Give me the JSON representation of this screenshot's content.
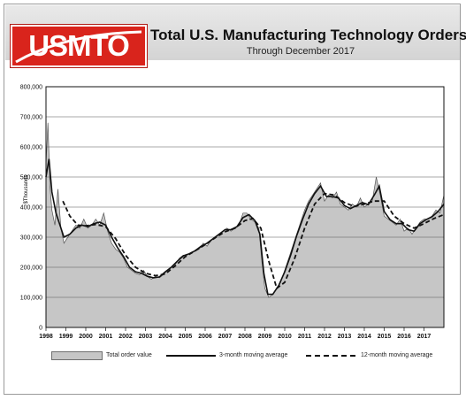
{
  "header": {
    "logo_text": "USMTO",
    "title": "Total U.S. Manufacturing Technology Orders",
    "subtitle": "Through December 2017"
  },
  "colors": {
    "logo_red": "#d9241c",
    "area_fill": "#c6c6c6",
    "line": "#111111"
  },
  "chart_data": {
    "type": "area",
    "ylabel": "$Thousands",
    "ylim": [
      0,
      800000
    ],
    "yticks": [
      "0",
      "100,000",
      "200,000",
      "300,000",
      "400,000",
      "500,000",
      "600,000",
      "700,000",
      "800,000"
    ],
    "xlim": [
      1998,
      2018
    ],
    "xticks": [
      "1998",
      "1999",
      "2000",
      "2001",
      "2002",
      "2003",
      "2004",
      "2005",
      "2006",
      "2007",
      "2008",
      "2009",
      "2010",
      "2011",
      "2012",
      "2013",
      "2014",
      "2015",
      "2016",
      "2017"
    ],
    "grid": true,
    "legend": "bottom",
    "series": [
      {
        "name": "Total order value",
        "style": "area",
        "points": [
          [
            1998.0,
            540000
          ],
          [
            1998.1,
            680000
          ],
          [
            1998.2,
            470000
          ],
          [
            1998.3,
            390000
          ],
          [
            1998.45,
            340000
          ],
          [
            1998.6,
            460000
          ],
          [
            1998.75,
            330000
          ],
          [
            1998.9,
            280000
          ],
          [
            1999.1,
            300000
          ],
          [
            1999.3,
            320000
          ],
          [
            1999.5,
            340000
          ],
          [
            1999.7,
            330000
          ],
          [
            1999.9,
            360000
          ],
          [
            2000.1,
            330000
          ],
          [
            2000.3,
            340000
          ],
          [
            2000.5,
            360000
          ],
          [
            2000.7,
            340000
          ],
          [
            2000.9,
            380000
          ],
          [
            2001.1,
            320000
          ],
          [
            2001.3,
            280000
          ],
          [
            2001.5,
            260000
          ],
          [
            2001.7,
            250000
          ],
          [
            2001.9,
            230000
          ],
          [
            2002.1,
            200000
          ],
          [
            2002.3,
            190000
          ],
          [
            2002.5,
            180000
          ],
          [
            2002.7,
            175000
          ],
          [
            2002.9,
            190000
          ],
          [
            2003.1,
            170000
          ],
          [
            2003.3,
            160000
          ],
          [
            2003.5,
            170000
          ],
          [
            2003.7,
            165000
          ],
          [
            2003.9,
            175000
          ],
          [
            2004.1,
            190000
          ],
          [
            2004.3,
            200000
          ],
          [
            2004.5,
            210000
          ],
          [
            2004.7,
            230000
          ],
          [
            2004.9,
            240000
          ],
          [
            2005.1,
            240000
          ],
          [
            2005.3,
            250000
          ],
          [
            2005.5,
            255000
          ],
          [
            2005.7,
            260000
          ],
          [
            2005.9,
            280000
          ],
          [
            2006.1,
            270000
          ],
          [
            2006.3,
            290000
          ],
          [
            2006.5,
            300000
          ],
          [
            2006.7,
            310000
          ],
          [
            2006.9,
            320000
          ],
          [
            2007.1,
            330000
          ],
          [
            2007.3,
            320000
          ],
          [
            2007.5,
            330000
          ],
          [
            2007.7,
            340000
          ],
          [
            2007.9,
            380000
          ],
          [
            2008.1,
            380000
          ],
          [
            2008.3,
            360000
          ],
          [
            2008.5,
            350000
          ],
          [
            2008.7,
            330000
          ],
          [
            2008.85,
            220000
          ],
          [
            2009.0,
            130000
          ],
          [
            2009.2,
            100000
          ],
          [
            2009.4,
            110000
          ],
          [
            2009.6,
            130000
          ],
          [
            2009.8,
            150000
          ],
          [
            2010.0,
            190000
          ],
          [
            2010.2,
            230000
          ],
          [
            2010.4,
            270000
          ],
          [
            2010.6,
            310000
          ],
          [
            2010.8,
            350000
          ],
          [
            2011.0,
            390000
          ],
          [
            2011.2,
            420000
          ],
          [
            2011.4,
            440000
          ],
          [
            2011.6,
            460000
          ],
          [
            2011.8,
            480000
          ],
          [
            2012.0,
            420000
          ],
          [
            2012.2,
            440000
          ],
          [
            2012.4,
            430000
          ],
          [
            2012.6,
            450000
          ],
          [
            2012.8,
            410000
          ],
          [
            2013.0,
            400000
          ],
          [
            2013.2,
            390000
          ],
          [
            2013.4,
            410000
          ],
          [
            2013.6,
            400000
          ],
          [
            2013.8,
            430000
          ],
          [
            2014.0,
            400000
          ],
          [
            2014.2,
            410000
          ],
          [
            2014.4,
            420000
          ],
          [
            2014.6,
            500000
          ],
          [
            2014.8,
            440000
          ],
          [
            2015.0,
            370000
          ],
          [
            2015.2,
            360000
          ],
          [
            2015.4,
            350000
          ],
          [
            2015.6,
            340000
          ],
          [
            2015.8,
            360000
          ],
          [
            2016.0,
            320000
          ],
          [
            2016.2,
            330000
          ],
          [
            2016.4,
            310000
          ],
          [
            2016.6,
            330000
          ],
          [
            2016.8,
            350000
          ],
          [
            2017.0,
            360000
          ],
          [
            2017.2,
            360000
          ],
          [
            2017.4,
            370000
          ],
          [
            2017.6,
            390000
          ],
          [
            2017.8,
            380000
          ],
          [
            2018.0,
            440000
          ]
        ]
      },
      {
        "name": "3-month moving average",
        "style": "solid",
        "points": [
          [
            1998.0,
            500000
          ],
          [
            1998.15,
            560000
          ],
          [
            1998.3,
            450000
          ],
          [
            1998.5,
            380000
          ],
          [
            1998.7,
            340000
          ],
          [
            1998.9,
            300000
          ],
          [
            1999.2,
            310000
          ],
          [
            1999.5,
            330000
          ],
          [
            1999.8,
            340000
          ],
          [
            2000.1,
            335000
          ],
          [
            2000.4,
            345000
          ],
          [
            2000.7,
            350000
          ],
          [
            2001.0,
            340000
          ],
          [
            2001.3,
            300000
          ],
          [
            2001.6,
            265000
          ],
          [
            2001.9,
            235000
          ],
          [
            2002.2,
            200000
          ],
          [
            2002.5,
            185000
          ],
          [
            2002.8,
            180000
          ],
          [
            2003.1,
            170000
          ],
          [
            2003.4,
            165000
          ],
          [
            2003.7,
            168000
          ],
          [
            2004.0,
            185000
          ],
          [
            2004.3,
            200000
          ],
          [
            2004.6,
            220000
          ],
          [
            2004.9,
            238000
          ],
          [
            2005.2,
            245000
          ],
          [
            2005.5,
            255000
          ],
          [
            2005.8,
            270000
          ],
          [
            2006.1,
            280000
          ],
          [
            2006.4,
            295000
          ],
          [
            2006.7,
            310000
          ],
          [
            2007.0,
            325000
          ],
          [
            2007.3,
            325000
          ],
          [
            2007.6,
            335000
          ],
          [
            2007.9,
            365000
          ],
          [
            2008.2,
            375000
          ],
          [
            2008.5,
            355000
          ],
          [
            2008.75,
            310000
          ],
          [
            2008.95,
            180000
          ],
          [
            2009.15,
            110000
          ],
          [
            2009.4,
            110000
          ],
          [
            2009.7,
            140000
          ],
          [
            2010.0,
            185000
          ],
          [
            2010.3,
            240000
          ],
          [
            2010.6,
            305000
          ],
          [
            2010.9,
            360000
          ],
          [
            2011.2,
            410000
          ],
          [
            2011.5,
            445000
          ],
          [
            2011.8,
            470000
          ],
          [
            2012.1,
            435000
          ],
          [
            2012.4,
            435000
          ],
          [
            2012.7,
            430000
          ],
          [
            2013.0,
            405000
          ],
          [
            2013.3,
            395000
          ],
          [
            2013.6,
            405000
          ],
          [
            2013.9,
            415000
          ],
          [
            2014.2,
            408000
          ],
          [
            2014.5,
            440000
          ],
          [
            2014.75,
            470000
          ],
          [
            2015.0,
            385000
          ],
          [
            2015.3,
            358000
          ],
          [
            2015.6,
            345000
          ],
          [
            2015.9,
            345000
          ],
          [
            2016.2,
            325000
          ],
          [
            2016.5,
            320000
          ],
          [
            2016.8,
            345000
          ],
          [
            2017.1,
            358000
          ],
          [
            2017.4,
            368000
          ],
          [
            2017.7,
            385000
          ],
          [
            2018.0,
            410000
          ]
        ]
      },
      {
        "name": "12-month moving average",
        "style": "dashed",
        "points": [
          [
            1998.85,
            420000
          ],
          [
            1999.2,
            370000
          ],
          [
            1999.6,
            340000
          ],
          [
            2000.0,
            338000
          ],
          [
            2000.5,
            342000
          ],
          [
            2001.0,
            335000
          ],
          [
            2001.5,
            295000
          ],
          [
            2002.0,
            240000
          ],
          [
            2002.5,
            200000
          ],
          [
            2003.0,
            180000
          ],
          [
            2003.5,
            172000
          ],
          [
            2004.0,
            178000
          ],
          [
            2004.5,
            205000
          ],
          [
            2005.0,
            235000
          ],
          [
            2005.5,
            255000
          ],
          [
            2006.0,
            275000
          ],
          [
            2006.5,
            298000
          ],
          [
            2007.0,
            318000
          ],
          [
            2007.5,
            330000
          ],
          [
            2008.0,
            355000
          ],
          [
            2008.4,
            362000
          ],
          [
            2008.8,
            330000
          ],
          [
            2009.2,
            220000
          ],
          [
            2009.6,
            130000
          ],
          [
            2010.0,
            150000
          ],
          [
            2010.5,
            230000
          ],
          [
            2011.0,
            330000
          ],
          [
            2011.5,
            410000
          ],
          [
            2012.0,
            445000
          ],
          [
            2012.5,
            440000
          ],
          [
            2013.0,
            415000
          ],
          [
            2013.5,
            402000
          ],
          [
            2014.0,
            410000
          ],
          [
            2014.5,
            420000
          ],
          [
            2015.0,
            420000
          ],
          [
            2015.5,
            370000
          ],
          [
            2016.0,
            345000
          ],
          [
            2016.5,
            330000
          ],
          [
            2017.0,
            345000
          ],
          [
            2017.5,
            362000
          ],
          [
            2018.0,
            375000
          ]
        ]
      }
    ]
  }
}
